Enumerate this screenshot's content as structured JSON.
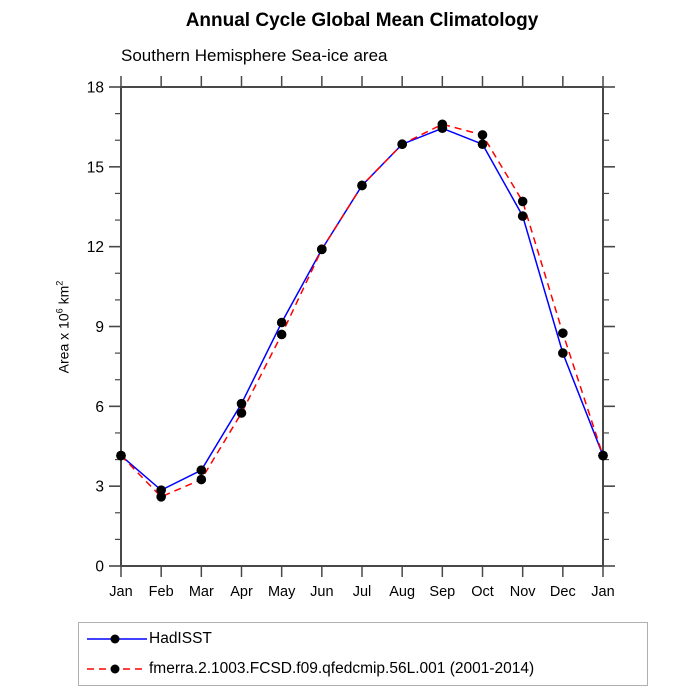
{
  "ylabel_parts": {
    "prefix": "Area x 10",
    "sup1": "6",
    "mid": " km",
    "sup2": "2"
  },
  "chart_data": {
    "type": "line",
    "title": "Annual Cycle Global Mean Climatology",
    "subtitle": "Southern Hemisphere Sea-ice area",
    "xlabel": "",
    "ylabel": "Area x 10^6 km^2",
    "categories": [
      "Jan",
      "Feb",
      "Mar",
      "Apr",
      "May",
      "Jun",
      "Jul",
      "Aug",
      "Sep",
      "Oct",
      "Nov",
      "Dec",
      "Jan"
    ],
    "series": [
      {
        "name": "HadISST",
        "line_color": "#0000ff",
        "line_style": "solid",
        "marker": "filled-circle",
        "marker_color": "#000000",
        "values": [
          4.15,
          2.85,
          3.6,
          6.1,
          9.15,
          11.9,
          14.3,
          15.85,
          16.45,
          15.85,
          13.15,
          8.0,
          4.15
        ]
      },
      {
        "name": "fmerra.2.1003.FCSD.f09.qfedcmip.56L.001 (2001-2014)",
        "line_color": "#ff0000",
        "line_style": "dashed",
        "marker": "filled-circle",
        "marker_color": "#000000",
        "values": [
          4.15,
          2.6,
          3.25,
          5.75,
          8.7,
          11.9,
          14.3,
          15.85,
          16.6,
          16.2,
          13.7,
          8.75,
          4.15
        ]
      }
    ],
    "ylim": [
      0,
      18
    ],
    "ytick_major": [
      0,
      3,
      6,
      9,
      12,
      15,
      18
    ],
    "ytick_minor_step": 1,
    "grid": false,
    "legend_position": "below-left",
    "axis_color": "#484848",
    "text_color": "#000000",
    "legend_border_color": "#b0b0b0"
  }
}
